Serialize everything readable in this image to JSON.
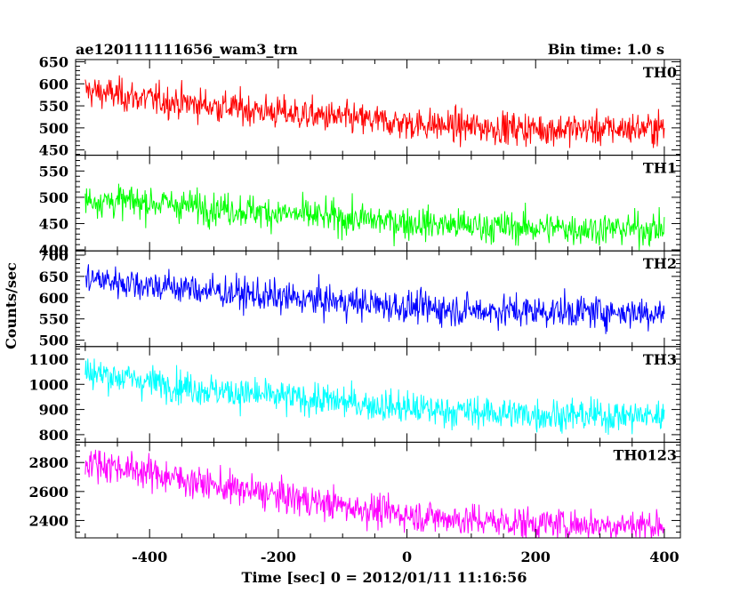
{
  "header": {
    "title": "ae120111111656_wam3_trn",
    "bin_time": "Bin time: 1.0 s"
  },
  "axes": {
    "xlabel": "Time [sec] 0 = 2012/01/11 11:16:56",
    "ylabel": "Counts/sec",
    "xlim": [
      -515,
      425
    ],
    "xticks": [
      -400,
      -200,
      0,
      200,
      400
    ]
  },
  "chart_data": {
    "type": "line",
    "x_range": [
      -500,
      400
    ],
    "bin_seconds": 1.0,
    "series": [
      {
        "name": "TH0",
        "color": "#ff0000",
        "ylim": [
          438,
          655
        ],
        "yticks": [
          450,
          500,
          550,
          600,
          650
        ],
        "trend_x": [
          -500,
          -400,
          -300,
          -200,
          -100,
          0,
          100,
          200,
          300,
          400
        ],
        "trend_y": [
          585,
          565,
          550,
          535,
          522,
          510,
          502,
          498,
          497,
          500
        ]
      },
      {
        "name": "TH1",
        "color": "#00ff00",
        "ylim": [
          398,
          580
        ],
        "yticks": [
          400,
          450,
          500,
          550
        ],
        "trend_x": [
          -500,
          -400,
          -300,
          -200,
          -100,
          0,
          100,
          200,
          300,
          400
        ],
        "trend_y": [
          495,
          490,
          480,
          470,
          460,
          452,
          445,
          442,
          440,
          440
        ]
      },
      {
        "name": "TH2",
        "color": "#0000ff",
        "ylim": [
          485,
          710
        ],
        "yticks": [
          500,
          550,
          600,
          650,
          700
        ],
        "trend_x": [
          -500,
          -400,
          -300,
          -200,
          -100,
          0,
          100,
          200,
          300,
          400
        ],
        "trend_y": [
          645,
          630,
          615,
          600,
          590,
          578,
          570,
          568,
          567,
          565
        ]
      },
      {
        "name": "TH3",
        "color": "#00ffff",
        "ylim": [
          770,
          1150
        ],
        "yticks": [
          800,
          900,
          1000,
          1100
        ],
        "trend_x": [
          -500,
          -400,
          -300,
          -200,
          -100,
          0,
          100,
          200,
          300,
          400
        ],
        "trend_y": [
          1050,
          1010,
          975,
          950,
          930,
          905,
          890,
          880,
          875,
          875
        ]
      },
      {
        "name": "TH0123",
        "color": "#ff00ff",
        "ylim": [
          2280,
          2940
        ],
        "yticks": [
          2400,
          2600,
          2800
        ],
        "trend_x": [
          -500,
          -400,
          -300,
          -200,
          -100,
          0,
          100,
          200,
          300,
          400
        ],
        "trend_y": [
          2810,
          2730,
          2640,
          2570,
          2500,
          2440,
          2400,
          2380,
          2370,
          2370
        ]
      }
    ]
  }
}
